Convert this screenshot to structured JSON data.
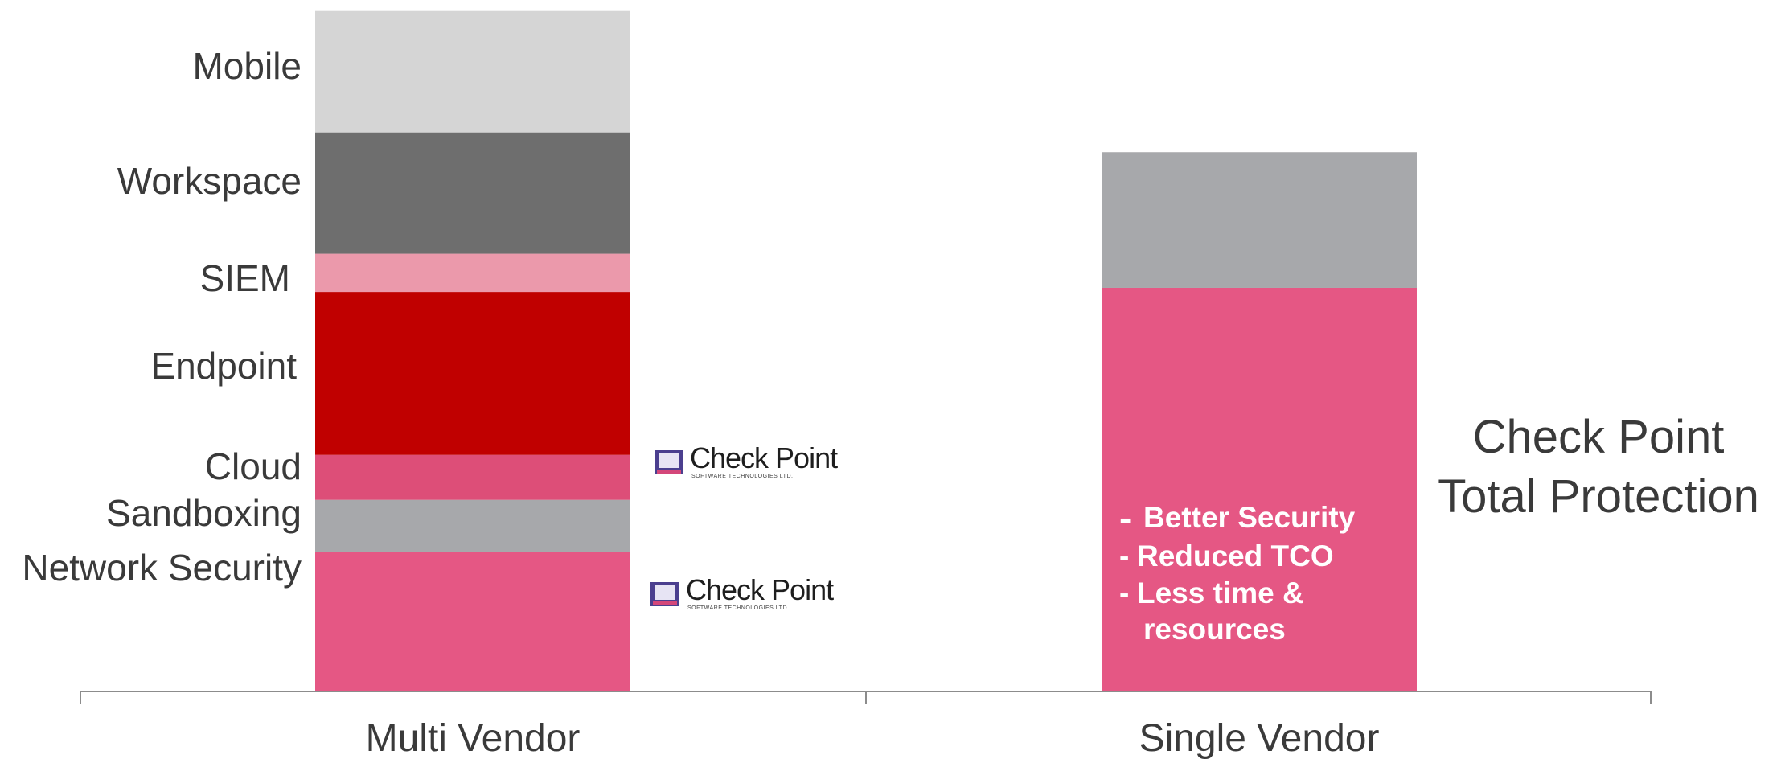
{
  "chart_data": {
    "type": "bar",
    "stacked": true,
    "categories": [
      "Multi Vendor",
      "Single Vendor"
    ],
    "ylim": [
      0,
      100
    ],
    "grid": false,
    "series": [
      {
        "name": "Network Security",
        "color": "#e55784",
        "values": [
          20.5,
          null
        ]
      },
      {
        "name": "Sandboxing",
        "color": "#a7a8ab",
        "values": [
          7.6,
          null
        ]
      },
      {
        "name": "Cloud",
        "color": "#dd4e78",
        "values": [
          6.6,
          null
        ]
      },
      {
        "name": "Endpoint",
        "color": "#c00000",
        "values": [
          23.9,
          null
        ]
      },
      {
        "name": "SIEM",
        "color": "#eb99ab",
        "values": [
          5.6,
          null
        ]
      },
      {
        "name": "Workspace",
        "color": "#6e6e6e",
        "values": [
          17.8,
          null
        ]
      },
      {
        "name": "Mobile",
        "color": "#d5d5d5",
        "values": [
          17.8,
          null
        ]
      },
      {
        "name": "",
        "color": "#e55784",
        "values": [
          null,
          59.2
        ]
      },
      {
        "name": "",
        "color": "#a7a8ab",
        "values": [
          null,
          19.9
        ]
      }
    ],
    "annotations": {
      "single_vendor_points": [
        "Better   Security",
        "Reduced TCO",
        "Less time &",
        "resources"
      ],
      "side_title": [
        "Check Point",
        "Total Protection"
      ]
    },
    "logos": [
      {
        "name": "Check Point",
        "subtitle": "SOFTWARE TECHNOLOGIES LTD.",
        "segment": "Cloud"
      },
      {
        "name": "Check Point",
        "subtitle": "SOFTWARE TECHNOLOGIES LTD.",
        "segment": "Network Security"
      }
    ],
    "axis_color": "#8c8c8c"
  }
}
